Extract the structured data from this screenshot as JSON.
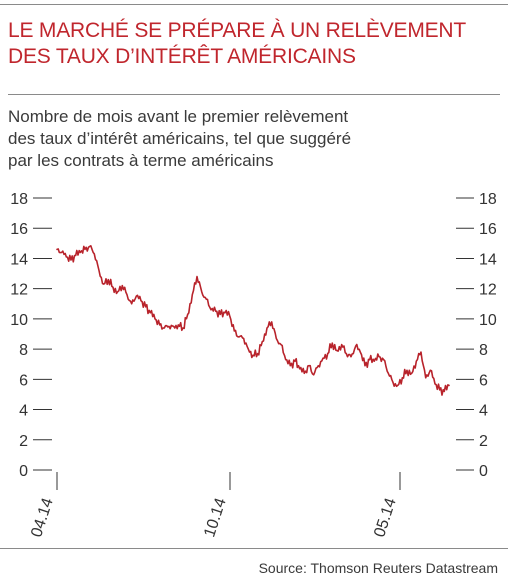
{
  "title_line1": "LE MARCHÉ SE PRÉPARE À UN RELÈVEMENT",
  "title_line2": "DES TAUX D’INTÉRÊT AMÉRICAINS",
  "subtitle_line1": "Nombre de mois avant le premier relèvement",
  "subtitle_line2": "des taux d’intérêt américains, tel que suggéré",
  "subtitle_line3": "par les contrats à terme américains",
  "source": "Source: Thomson Reuters Datastream",
  "colors": {
    "title": "#c0262d",
    "line": "#b8232b",
    "axis": "#333333"
  },
  "chart_data": {
    "type": "line",
    "ylim": [
      0,
      18
    ],
    "y_ticks": [
      "0",
      "2",
      "4",
      "6",
      "8",
      "10",
      "12",
      "14",
      "16",
      "18"
    ],
    "x_ticks": [
      "04.14",
      "10.14",
      "05.14"
    ],
    "series": [
      {
        "values": [
          14.6,
          14.4,
          14.1,
          13.9,
          14.2,
          14.4,
          14.6,
          14.8,
          14.3,
          13.2,
          12.3,
          12.6,
          12.1,
          11.8,
          12.2,
          11.6,
          11.0,
          11.5,
          11.2,
          10.8,
          10.4,
          10.0,
          9.6,
          9.4,
          9.5,
          9.5,
          9.6,
          9.4,
          10.3,
          11.6,
          12.8,
          11.8,
          11.3,
          10.6,
          10.5,
          10.3,
          10.4,
          10.2,
          9.2,
          8.8,
          8.7,
          8.0,
          7.6,
          7.7,
          8.5,
          9.4,
          9.8,
          8.7,
          8.3,
          7.3,
          6.9,
          7.2,
          6.7,
          6.4,
          6.9,
          6.3,
          6.9,
          7.4,
          7.7,
          8.4,
          7.9,
          8.3,
          7.7,
          7.5,
          8.2,
          7.8,
          6.9,
          7.3,
          7.2,
          7.5,
          7.3,
          6.4,
          5.8,
          5.6,
          6.1,
          6.6,
          6.4,
          7.2,
          7.8,
          6.1,
          6.6,
          5.7,
          5.3,
          5.2,
          5.6
        ]
      }
    ]
  }
}
